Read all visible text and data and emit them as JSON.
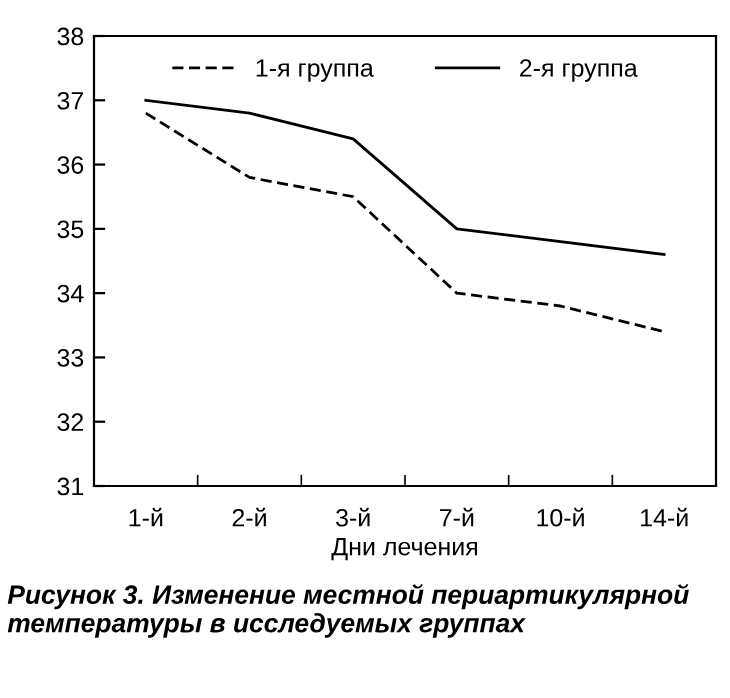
{
  "chart_data": {
    "type": "line",
    "xlabel": "Дни лечения",
    "categories": [
      "1-й",
      "2-й",
      "3-й",
      "7-й",
      "10-й",
      "14-й"
    ],
    "series": [
      {
        "name": "1-я группа",
        "color": "#000000",
        "line_style": "dashed",
        "values": [
          36.8,
          35.8,
          35.5,
          34.0,
          33.8,
          33.4
        ]
      },
      {
        "name": "2-я группа",
        "color": "#000000",
        "line_style": "solid",
        "values": [
          37.0,
          36.8,
          36.4,
          35.0,
          34.8,
          34.6
        ]
      }
    ],
    "ylim": [
      31,
      38
    ],
    "yticks": [
      31,
      32,
      33,
      34,
      35,
      36,
      37,
      38
    ],
    "grid": false,
    "legend": "top",
    "marker": "none",
    "annotations": [
      "Рисунок 3. Изменение местной периартикулярной температуры в исследуемых группах"
    ]
  }
}
